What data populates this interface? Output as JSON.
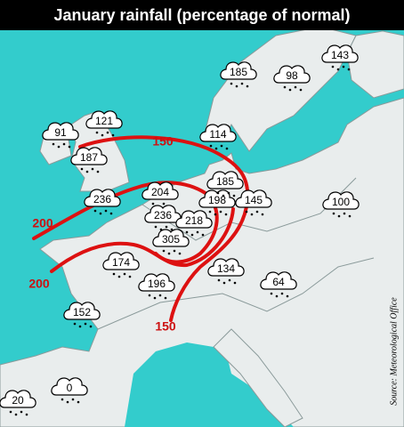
{
  "title": "January rainfall  (percentage of normal)",
  "source": "Source: Meteorological Office",
  "stations": [
    {
      "label": "91"
    },
    {
      "label": "121"
    },
    {
      "label": "187"
    },
    {
      "label": "236"
    },
    {
      "label": "204"
    },
    {
      "label": "236"
    },
    {
      "label": "218"
    },
    {
      "label": "305"
    },
    {
      "label": "198"
    },
    {
      "label": "185"
    },
    {
      "label": "145"
    },
    {
      "label": "114"
    },
    {
      "label": "185"
    },
    {
      "label": "98"
    },
    {
      "label": "143"
    },
    {
      "label": "100"
    },
    {
      "label": "174"
    },
    {
      "label": "196"
    },
    {
      "label": "134"
    },
    {
      "label": "64"
    },
    {
      "label": "152"
    },
    {
      "label": "0"
    },
    {
      "label": "20"
    }
  ],
  "isolines": [
    {
      "label": "150"
    },
    {
      "label": "200"
    },
    {
      "label": "200"
    },
    {
      "label": "150"
    }
  ]
}
